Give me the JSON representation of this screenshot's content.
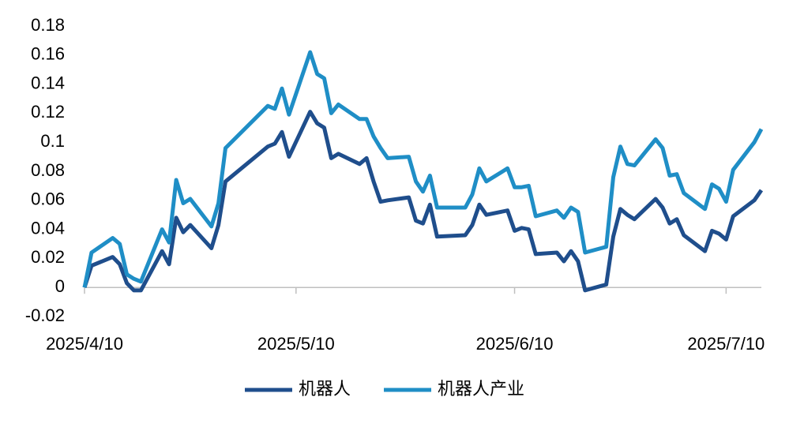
{
  "chart_data": {
    "type": "line",
    "x": [
      "2025/4/10",
      "2025/4/11",
      "2025/4/14",
      "2025/4/15",
      "2025/4/16",
      "2025/4/17",
      "2025/4/18",
      "2025/4/21",
      "2025/4/22",
      "2025/4/23",
      "2025/4/24",
      "2025/4/25",
      "2025/4/28",
      "2025/4/29",
      "2025/4/30",
      "2025/5/6",
      "2025/5/7",
      "2025/5/8",
      "2025/5/9",
      "2025/5/12",
      "2025/5/13",
      "2025/5/14",
      "2025/5/15",
      "2025/5/16",
      "2025/5/19",
      "2025/5/20",
      "2025/5/21",
      "2025/5/22",
      "2025/5/23",
      "2025/5/26",
      "2025/5/27",
      "2025/5/28",
      "2025/5/29",
      "2025/5/30",
      "2025/6/3",
      "2025/6/4",
      "2025/6/5",
      "2025/6/6",
      "2025/6/9",
      "2025/6/10",
      "2025/6/11",
      "2025/6/12",
      "2025/6/13",
      "2025/6/16",
      "2025/6/17",
      "2025/6/18",
      "2025/6/19",
      "2025/6/20",
      "2025/6/23",
      "2025/6/24",
      "2025/6/25",
      "2025/6/26",
      "2025/6/27",
      "2025/6/30",
      "2025/7/1",
      "2025/7/2",
      "2025/7/3",
      "2025/7/4",
      "2025/7/7",
      "2025/7/8",
      "2025/7/9",
      "2025/7/10",
      "2025/7/11",
      "2025/7/14",
      "2025/7/15"
    ],
    "series": [
      {
        "name": "机器人",
        "color": "#1f4e8c",
        "values": [
          0,
          0.015,
          0.021,
          0.016,
          0.003,
          -0.002,
          -0.002,
          0.025,
          0.016,
          0.048,
          0.038,
          0.043,
          0.027,
          0.043,
          0.073,
          0.097,
          0.099,
          0.107,
          0.09,
          0.121,
          0.113,
          0.11,
          0.089,
          0.092,
          0.085,
          0.089,
          0.073,
          0.059,
          0.06,
          0.062,
          0.046,
          0.044,
          0.057,
          0.035,
          0.036,
          0.043,
          0.057,
          0.05,
          0.053,
          0.039,
          0.041,
          0.04,
          0.023,
          0.024,
          0.018,
          0.025,
          0.018,
          -0.002,
          0.002,
          0.035,
          0.054,
          0.05,
          0.047,
          0.061,
          0.055,
          0.044,
          0.047,
          0.036,
          0.025,
          0.039,
          0.037,
          0.033,
          0.049,
          0.06,
          0.067
        ]
      },
      {
        "name": "机器人产业",
        "color": "#1f8ec6",
        "values": [
          0,
          0.024,
          0.034,
          0.03,
          0.009,
          0.006,
          0.004,
          0.04,
          0.031,
          0.074,
          0.058,
          0.061,
          0.042,
          0.058,
          0.096,
          0.125,
          0.123,
          0.137,
          0.119,
          0.162,
          0.147,
          0.144,
          0.12,
          0.126,
          0.116,
          0.116,
          0.104,
          0.096,
          0.089,
          0.09,
          0.073,
          0.066,
          0.077,
          0.055,
          0.055,
          0.064,
          0.082,
          0.073,
          0.082,
          0.069,
          0.069,
          0.07,
          0.049,
          0.053,
          0.048,
          0.055,
          0.052,
          0.024,
          0.028,
          0.076,
          0.097,
          0.085,
          0.084,
          0.102,
          0.096,
          0.077,
          0.078,
          0.065,
          0.054,
          0.071,
          0.068,
          0.059,
          0.081,
          0.1,
          0.109
        ]
      }
    ],
    "xlim": [
      "2025/4/10",
      "2025/7/15"
    ],
    "xticks": [
      "2025/4/10",
      "2025/5/10",
      "2025/6/10",
      "2025/7/10"
    ],
    "ylim": [
      -0.02,
      0.18
    ],
    "yticks": [
      -0.02,
      0,
      0.02,
      0.04,
      0.06,
      0.08,
      0.1,
      0.12,
      0.14,
      0.16,
      0.18
    ],
    "grid": false,
    "legend": "bottom"
  }
}
